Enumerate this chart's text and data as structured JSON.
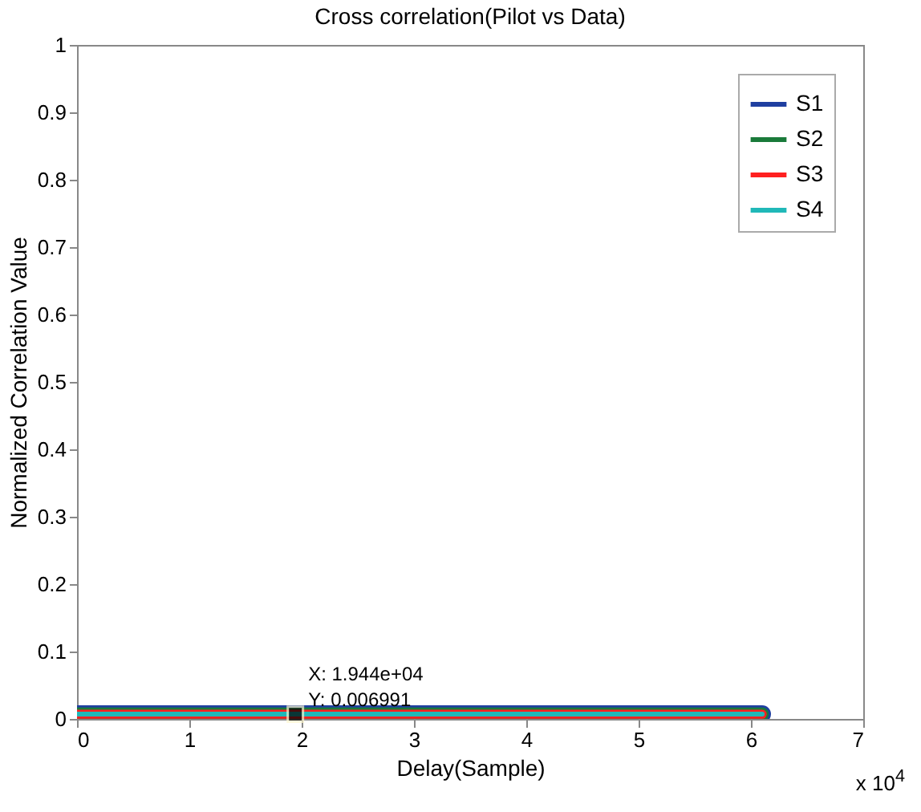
{
  "chart_data": {
    "type": "line",
    "title": "Cross correlation(Pilot vs Data)",
    "xlabel": "Delay(Sample)",
    "ylabel": "Normalized Correlation Value",
    "x": [
      0,
      6.1
    ],
    "series": [
      {
        "name": "S1",
        "color": "#1f3fa0",
        "values": [
          0.007,
          0.007
        ]
      },
      {
        "name": "S2",
        "color": "#1a7a3a",
        "values": [
          0.007,
          0.007
        ]
      },
      {
        "name": "S3",
        "color": "#ff2020",
        "values": [
          0.007,
          0.007
        ]
      },
      {
        "name": "S4",
        "color": "#20b8b8",
        "values": [
          0.007,
          0.007
        ]
      }
    ],
    "xlim": [
      0,
      7
    ],
    "xticks": [
      0,
      1,
      2,
      3,
      4,
      5,
      6,
      7
    ],
    "ylim": [
      0,
      1
    ],
    "yticks": [
      0,
      0.1,
      0.2,
      0.3,
      0.4,
      0.5,
      0.6,
      0.7,
      0.8,
      0.9,
      1
    ],
    "annotations": [
      {
        "text": "X: 1.944e+04\nY: 0.006991",
        "x": 1.944,
        "y": 0.006991
      },
      "x 10$^{4}$"
    ],
    "legend": "top right",
    "grid": false,
    "marker": "none",
    "line_style": "solid"
  }
}
